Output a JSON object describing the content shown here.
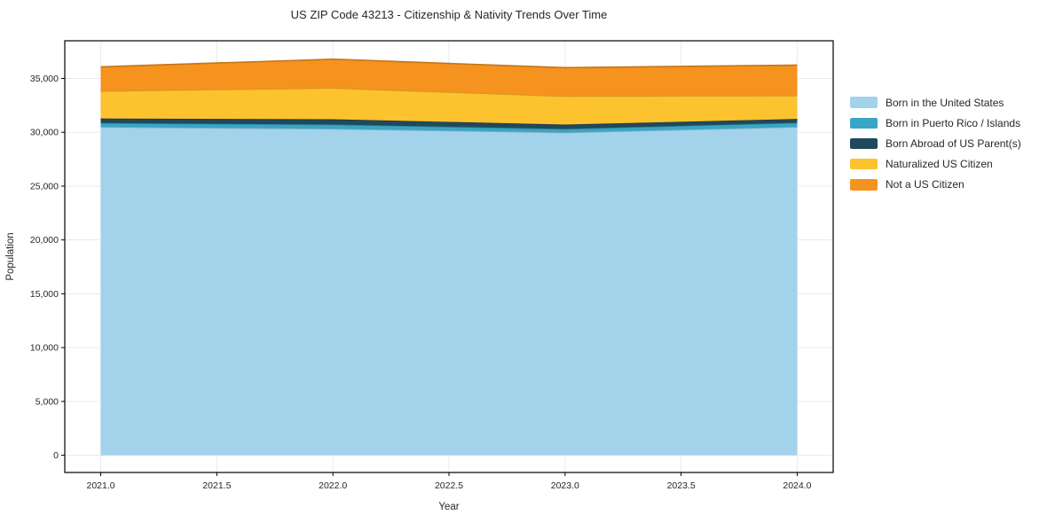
{
  "title": "US ZIP Code 43213 - Citizenship & Nativity Trends Over Time",
  "chart_data": {
    "type": "area",
    "stacked": true,
    "title": "US ZIP Code 43213 - Citizenship & Nativity Trends Over Time",
    "xlabel": "Year",
    "ylabel": "Population",
    "x": [
      2021,
      2022,
      2023,
      2024
    ],
    "xlim": [
      2020.845,
      2024.155
    ],
    "ylim": [
      -1600,
      38500
    ],
    "xticks": [
      2021.0,
      2021.5,
      2022.0,
      2022.5,
      2023.0,
      2023.5,
      2024.0
    ],
    "xtick_labels": [
      "2021.0",
      "2021.5",
      "2022.0",
      "2022.5",
      "2023.0",
      "2023.5",
      "2024.0"
    ],
    "yticks": [
      0,
      5000,
      10000,
      15000,
      20000,
      25000,
      30000,
      35000
    ],
    "ytick_labels": [
      "0",
      "5,000",
      "10,000",
      "15,000",
      "20,000",
      "25,000",
      "30,000",
      "35,000"
    ],
    "grid": true,
    "legend_position": "right-outside",
    "colors": {
      "grid": "#eaeaea",
      "spine": "#000000",
      "text": "#262626",
      "background": "#ffffff"
    },
    "series": [
      {
        "name": "Born in the United States",
        "color": "#a2d3ea",
        "values": [
          30500,
          30330,
          29980,
          30500
        ]
      },
      {
        "name": "Born in Puerto Rico / Islands",
        "color": "#38a6c6",
        "values": [
          360,
          390,
          330,
          385
        ]
      },
      {
        "name": "Born Abroad of US Parent(s)",
        "color": "#20495c",
        "values": [
          420,
          490,
          410,
          355
        ]
      },
      {
        "name": "Naturalized US Citizen",
        "color": "#fdc32e",
        "values": [
          2550,
          2900,
          2630,
          2160
        ]
      },
      {
        "name": "Not a US Citizen",
        "color": "#f6921e",
        "values": [
          2250,
          2680,
          2650,
          2840
        ]
      }
    ],
    "totals": [
      36080,
      36790,
      36000,
      36240
    ]
  }
}
